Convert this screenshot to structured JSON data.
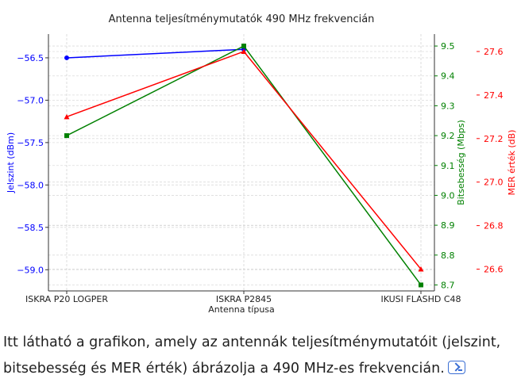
{
  "chart_data": {
    "type": "line",
    "title": "Antenna teljesítménymutatók 490 MHz frekvencián",
    "xlabel": "Antenna típusa",
    "categories": [
      "ISKRA P20 LOGPER",
      "ISKRA P2845",
      "IKUSI FLASHD C48"
    ],
    "grid": true,
    "axes": [
      {
        "label": "Jelszint (dBm)",
        "color": "#0000ff",
        "side": "left",
        "ylim": [
          -59.25,
          -56.22
        ],
        "ticks": [
          -56.5,
          -57.0,
          -57.5,
          -58.0,
          -58.5,
          -59.0
        ],
        "tick_labels": [
          "−56.5",
          "−57.0",
          "−57.5",
          "−58.0",
          "−58.5",
          "−59.0"
        ]
      },
      {
        "label": "Bitsebesség (Mbps)",
        "color": "#008000",
        "side": "right",
        "ylim": [
          8.68,
          9.54
        ],
        "ticks": [
          9.5,
          9.4,
          9.3,
          9.2,
          9.1,
          9.0,
          8.9,
          8.8,
          8.7
        ],
        "tick_labels": [
          "9.5",
          "9.4",
          "9.3",
          "9.2",
          "9.1",
          "9.0",
          "8.9",
          "8.8",
          "8.7"
        ]
      },
      {
        "label": "MER érték (dB)",
        "color": "#ff0000",
        "side": "right-outer",
        "ylim": [
          26.5,
          27.68
        ],
        "ticks": [
          27.6,
          27.4,
          27.2,
          27.0,
          26.8,
          26.6
        ],
        "tick_labels": [
          "27.6",
          "27.4",
          "27.2",
          "27.0",
          "26.8",
          "26.6"
        ]
      }
    ],
    "series": [
      {
        "name": "Jelszint (dBm)",
        "axis": 0,
        "color": "#0000ff",
        "marker": "circle",
        "values": [
          -56.5,
          -56.4,
          null
        ]
      },
      {
        "name": "Bitsebesség (Mbps)",
        "axis": 1,
        "color": "#008000",
        "marker": "square",
        "values": [
          9.2,
          9.5,
          8.7
        ]
      },
      {
        "name": "MER érték (dB)",
        "axis": 2,
        "color": "#ff0000",
        "marker": "triangle",
        "values": [
          27.3,
          27.6,
          26.6
        ]
      }
    ]
  },
  "caption": {
    "text": "Itt látható a grafikon, amely az antennák teljesítménymutatóit (jelszint, bitsebesség és MER érték) ábrázolja a 490 MHz-es frekvencián.",
    "source_icon": "source-link-icon"
  }
}
